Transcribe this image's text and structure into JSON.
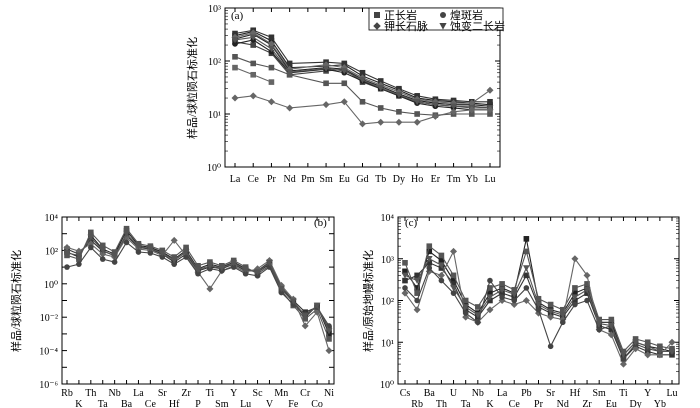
{
  "chart_data": [
    {
      "type": "line",
      "panel": "(a)",
      "ylabel": "样品/球粒陨石标准化",
      "yscale": "log",
      "ylim_exp": [
        0,
        3
      ],
      "ytick_labels": [
        "10⁰",
        "10¹",
        "10²",
        "10³"
      ],
      "categories": [
        "La",
        "Ce",
        "Pr",
        "Nd",
        "Pm",
        "Sm",
        "Eu",
        "Gd",
        "Tb",
        "Dy",
        "Ho",
        "Er",
        "Tm",
        "Yb",
        "Lu"
      ],
      "legend": [
        {
          "label": "正长岩",
          "marker": "square"
        },
        {
          "label": "煌斑岩",
          "marker": "circle"
        },
        {
          "label": "钾长石脉",
          "marker": "diamond"
        },
        {
          "label": "蚀变二长岩",
          "marker": "triangle-down"
        }
      ],
      "series": [
        {
          "name": "s1",
          "marker": "square",
          "color": "#222",
          "values": [
            300,
            360,
            240,
            75,
            null,
            80,
            85,
            52,
            38,
            28,
            20,
            18,
            17,
            16,
            15
          ]
        },
        {
          "name": "s2",
          "marker": "square",
          "color": "#222",
          "values": [
            260,
            320,
            200,
            65,
            null,
            75,
            70,
            45,
            33,
            24,
            18,
            16,
            15,
            15,
            14
          ]
        },
        {
          "name": "s3",
          "marker": "square",
          "color": "#444",
          "values": [
            230,
            200,
            140,
            55,
            null,
            65,
            70,
            40,
            30,
            22,
            17,
            15,
            14,
            14,
            13
          ]
        },
        {
          "name": "s4",
          "marker": "square",
          "color": "#333",
          "values": [
            330,
            380,
            280,
            90,
            null,
            95,
            90,
            60,
            42,
            30,
            22,
            19,
            18,
            17,
            17
          ]
        },
        {
          "name": "s5",
          "marker": "circle",
          "color": "#222",
          "values": [
            210,
            250,
            150,
            60,
            null,
            70,
            60,
            42,
            30,
            22,
            16,
            14,
            13,
            12,
            12
          ]
        },
        {
          "name": "s6",
          "marker": "diamond",
          "color": "#666",
          "values": [
            280,
            340,
            210,
            70,
            null,
            85,
            75,
            48,
            35,
            26,
            19,
            17,
            16,
            16,
            28
          ]
        },
        {
          "name": "s7",
          "marker": "triangle-down",
          "color": "#555",
          "values": [
            250,
            280,
            170,
            62,
            null,
            72,
            65,
            44,
            31,
            23,
            17,
            15,
            14,
            13,
            13
          ]
        },
        {
          "name": "s8",
          "marker": "square",
          "color": "#555",
          "values": [
            120,
            90,
            75,
            55,
            null,
            38,
            38,
            17,
            13,
            11,
            10,
            9.5,
            10,
            10,
            10
          ]
        },
        {
          "name": "s9",
          "marker": "square",
          "color": "#666",
          "values": [
            75,
            55,
            40,
            null,
            null,
            null,
            null,
            null,
            null,
            null,
            null,
            null,
            null,
            null,
            null
          ]
        },
        {
          "name": "s10",
          "marker": "diamond",
          "color": "#666",
          "values": [
            20,
            22,
            17,
            13,
            null,
            15,
            17,
            6.5,
            7,
            7,
            7,
            9,
            11,
            12,
            12
          ]
        }
      ]
    },
    {
      "type": "line",
      "panel": "(b)",
      "ylabel": "样品/球粒陨石标准化",
      "yscale": "log",
      "ylim_exp": [
        -6,
        4
      ],
      "ytick_labels": [
        "10⁻⁶",
        "10⁻⁴",
        "10⁻²",
        "10⁰",
        "10²",
        "10⁴"
      ],
      "categories": [
        "Rb",
        "K",
        "Th",
        "Ta",
        "Nb",
        "Ba",
        "La",
        "Ce",
        "Sr",
        "Hf",
        "Zr",
        "P",
        "Ti",
        "Sm",
        "Y",
        "Lu",
        "Sc",
        "V",
        "Mn",
        "Fe",
        "Cr",
        "Co",
        "Ni"
      ],
      "series": [
        {
          "name": "b1",
          "marker": "square",
          "color": "#222",
          "values": [
            80,
            40,
            800,
            120,
            60,
            1500,
            200,
            150,
            80,
            30,
            100,
            8,
            15,
            10,
            20,
            8,
            5,
            15,
            0.5,
            0.08,
            0.01,
            0.05,
            0.001
          ]
        },
        {
          "name": "b2",
          "marker": "square",
          "color": "#333",
          "values": [
            120,
            60,
            400,
            90,
            50,
            800,
            150,
            120,
            60,
            20,
            60,
            6,
            10,
            8,
            15,
            6,
            6,
            20,
            0.6,
            0.1,
            0.02,
            0.04,
            0.002
          ]
        },
        {
          "name": "b3",
          "marker": "square",
          "color": "#555",
          "values": [
            50,
            30,
            1200,
            200,
            80,
            2000,
            250,
            180,
            100,
            40,
            150,
            12,
            20,
            12,
            25,
            10,
            4,
            12,
            0.4,
            0.05,
            0.008,
            0.03,
            0.0005
          ]
        },
        {
          "name": "b4",
          "marker": "diamond",
          "color": "#666",
          "values": [
            150,
            90,
            250,
            60,
            40,
            600,
            120,
            100,
            50,
            400,
            50,
            5,
            0.5,
            6,
            12,
            5,
            8,
            25,
            0.8,
            0.12,
            0.003,
            0.02,
            0.0001
          ]
        },
        {
          "name": "b5",
          "marker": "circle",
          "color": "#444",
          "values": [
            10,
            15,
            150,
            30,
            20,
            300,
            80,
            70,
            40,
            15,
            40,
            4,
            8,
            6,
            10,
            4,
            3,
            10,
            0.3,
            0.06,
            0.015,
            0.04,
            0.003
          ]
        },
        {
          "name": "b6",
          "marker": "triangle-down",
          "color": "#555",
          "values": [
            70,
            50,
            600,
            100,
            45,
            1000,
            170,
            130,
            70,
            25,
            80,
            7,
            12,
            9,
            18,
            7,
            5,
            18,
            0.5,
            0.09,
            0.012,
            0.05,
            0.0015
          ]
        }
      ]
    },
    {
      "type": "line",
      "panel": "(c)",
      "ylabel": "样品/原始地幔标准化",
      "yscale": "log",
      "ylim_exp": [
        0,
        4
      ],
      "ytick_labels": [
        "10⁰",
        "10¹",
        "10²",
        "10³",
        "10⁴"
      ],
      "categories": [
        "Cs",
        "Rb",
        "Ba",
        "Th",
        "U",
        "Ta",
        "Nb",
        "K",
        "La",
        "Ce",
        "Pb",
        "Pr",
        "Sr",
        "Nd",
        "Hf",
        "Zr",
        "Sm",
        "Eu",
        "Ti",
        "Dy",
        "Y",
        "Yb",
        "Lu"
      ],
      "series": [
        {
          "name": "c1",
          "marker": "square",
          "color": "#222",
          "values": [
            500,
            200,
            1500,
            900,
            300,
            80,
            50,
            150,
            200,
            150,
            3000,
            90,
            60,
            50,
            150,
            200,
            30,
            30,
            5,
            10,
            8,
            7,
            6
          ]
        },
        {
          "name": "c2",
          "marker": "square",
          "color": "#333",
          "values": [
            300,
            400,
            800,
            600,
            250,
            60,
            40,
            100,
            150,
            120,
            400,
            70,
            50,
            40,
            100,
            150,
            25,
            20,
            4,
            8,
            6,
            5,
            5
          ]
        },
        {
          "name": "c3",
          "marker": "square",
          "color": "#555",
          "values": [
            800,
            150,
            2000,
            1200,
            400,
            100,
            70,
            200,
            250,
            180,
            1500,
            110,
            80,
            60,
            200,
            250,
            35,
            35,
            6,
            12,
            10,
            8,
            7
          ]
        },
        {
          "name": "c4",
          "marker": "diamond",
          "color": "#666",
          "values": [
            150,
            60,
            500,
            400,
            1500,
            40,
            30,
            60,
            100,
            80,
            100,
            50,
            40,
            35,
            1000,
            400,
            20,
            15,
            3,
            7,
            5,
            5,
            10
          ]
        },
        {
          "name": "c5",
          "marker": "circle",
          "color": "#444",
          "values": [
            200,
            100,
            600,
            300,
            150,
            50,
            30,
            300,
            120,
            100,
            200,
            60,
            8,
            30,
            80,
            100,
            20,
            25,
            4,
            9,
            7,
            6,
            6
          ]
        },
        {
          "name": "c6",
          "marker": "triangle-down",
          "color": "#555",
          "values": [
            400,
            300,
            1000,
            700,
            200,
            70,
            45,
            120,
            180,
            140,
            600,
            80,
            55,
            45,
            120,
            180,
            28,
            25,
            5,
            10,
            8,
            6,
            6
          ]
        }
      ]
    }
  ]
}
